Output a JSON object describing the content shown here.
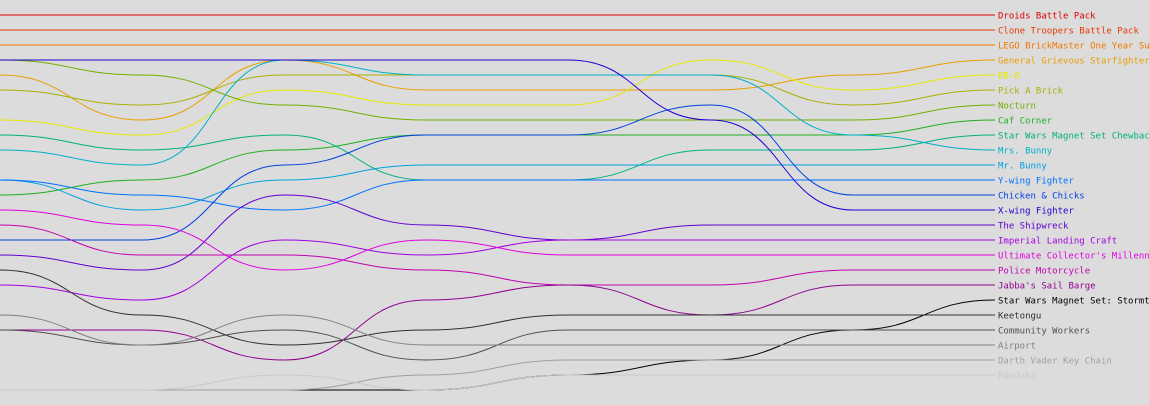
{
  "chart_data": {
    "type": "bump",
    "categories": [
      null,
      null,
      null,
      null,
      null,
      null,
      null,
      null
    ],
    "series": [
      {
        "name": "Droids Battle Pack",
        "color": "#e00000",
        "values": [
          1,
          1,
          1,
          1,
          1,
          1,
          1,
          1
        ]
      },
      {
        "name": "Clone Troopers Battle Pack",
        "color": "#e83800",
        "values": [
          2,
          2,
          2,
          2,
          2,
          2,
          2,
          2
        ]
      },
      {
        "name": "LEGO BrickMaster One Year Subs",
        "color": "#f07800",
        "values": [
          3,
          3,
          3,
          3,
          3,
          3,
          3,
          3
        ]
      },
      {
        "name": "General Grievous Starfighter",
        "color": "#e8a000",
        "values": [
          5,
          8,
          4,
          6,
          6,
          6,
          5,
          4
        ]
      },
      {
        "name": "BB-8",
        "color": "#e8e800",
        "values": [
          8,
          9,
          6,
          7,
          7,
          4,
          6,
          5
        ]
      },
      {
        "name": "Pick A Brick",
        "color": "#a8b000",
        "values": [
          6,
          7,
          5,
          5,
          5,
          5,
          7,
          6
        ]
      },
      {
        "name": "Nocturn",
        "color": "#70b000",
        "values": [
          4,
          5,
          7,
          8,
          8,
          8,
          8,
          7
        ]
      },
      {
        "name": "Caf Corner",
        "color": "#20b020",
        "values": [
          13,
          12,
          10,
          9,
          9,
          9,
          9,
          8
        ]
      },
      {
        "name": "Star Wars Magnet Set Chewbacca",
        "color": "#00b080",
        "values": [
          9,
          10,
          9,
          12,
          12,
          10,
          10,
          9
        ]
      },
      {
        "name": "Mrs. Bunny",
        "color": "#00b0c8",
        "values": [
          10,
          11,
          4,
          5,
          5,
          5,
          9,
          10
        ]
      },
      {
        "name": "Mr. Bunny",
        "color": "#00a0e0",
        "values": [
          12,
          14,
          12,
          11,
          11,
          11,
          11,
          11
        ]
      },
      {
        "name": "Y-wing Fighter",
        "color": "#0070ff",
        "values": [
          12,
          13,
          14,
          12,
          12,
          12,
          12,
          12
        ]
      },
      {
        "name": "Chicken & Chicks",
        "color": "#0040e0",
        "values": [
          16,
          16,
          11,
          9,
          9,
          7,
          13,
          13
        ]
      },
      {
        "name": "X-wing Fighter",
        "color": "#2000d0",
        "values": [
          4,
          4,
          4,
          4,
          4,
          8,
          14,
          14
        ]
      },
      {
        "name": "The Shipwreck",
        "color": "#6000d0",
        "values": [
          17,
          18,
          13,
          15,
          16,
          15,
          15,
          15
        ]
      },
      {
        "name": "Imperial Landing Craft",
        "color": "#a000e0",
        "values": [
          19,
          20,
          16,
          17,
          16,
          16,
          16,
          16
        ]
      },
      {
        "name": "Ultimate Collector's Millenniu",
        "color": "#e000e0",
        "values": [
          14,
          15,
          18,
          16,
          17,
          17,
          17,
          17
        ]
      },
      {
        "name": "Police Motorcycle",
        "color": "#c000b0",
        "values": [
          15,
          17,
          17,
          18,
          19,
          19,
          18,
          18
        ]
      },
      {
        "name": "Jabba's Sail Barge",
        "color": "#900090",
        "values": [
          22,
          22,
          24,
          20,
          19,
          21,
          19,
          19
        ]
      },
      {
        "name": "Star Wars Magnet Set: Stormtro",
        "color": "#000000",
        "values": [
          26,
          26,
          26,
          26,
          25,
          24,
          22,
          20
        ]
      },
      {
        "name": "Keetongu",
        "color": "#303030",
        "values": [
          18,
          21,
          23,
          22,
          21,
          21,
          21,
          21
        ]
      },
      {
        "name": "Community Workers",
        "color": "#505050",
        "values": [
          22,
          23,
          22,
          24,
          22,
          22,
          22,
          22
        ]
      },
      {
        "name": "Airport",
        "color": "#808080",
        "values": [
          21,
          23,
          21,
          23,
          23,
          23,
          23,
          23
        ]
      },
      {
        "name": "Darth Vader Key Chain",
        "color": "#a0a0a0",
        "values": [
          26,
          26,
          26,
          25,
          24,
          24,
          24,
          24
        ]
      },
      {
        "name": "Roodaka",
        "color": "#c8c8c8",
        "values": [
          26,
          26,
          25,
          26,
          25,
          25,
          25,
          25
        ]
      }
    ]
  }
}
